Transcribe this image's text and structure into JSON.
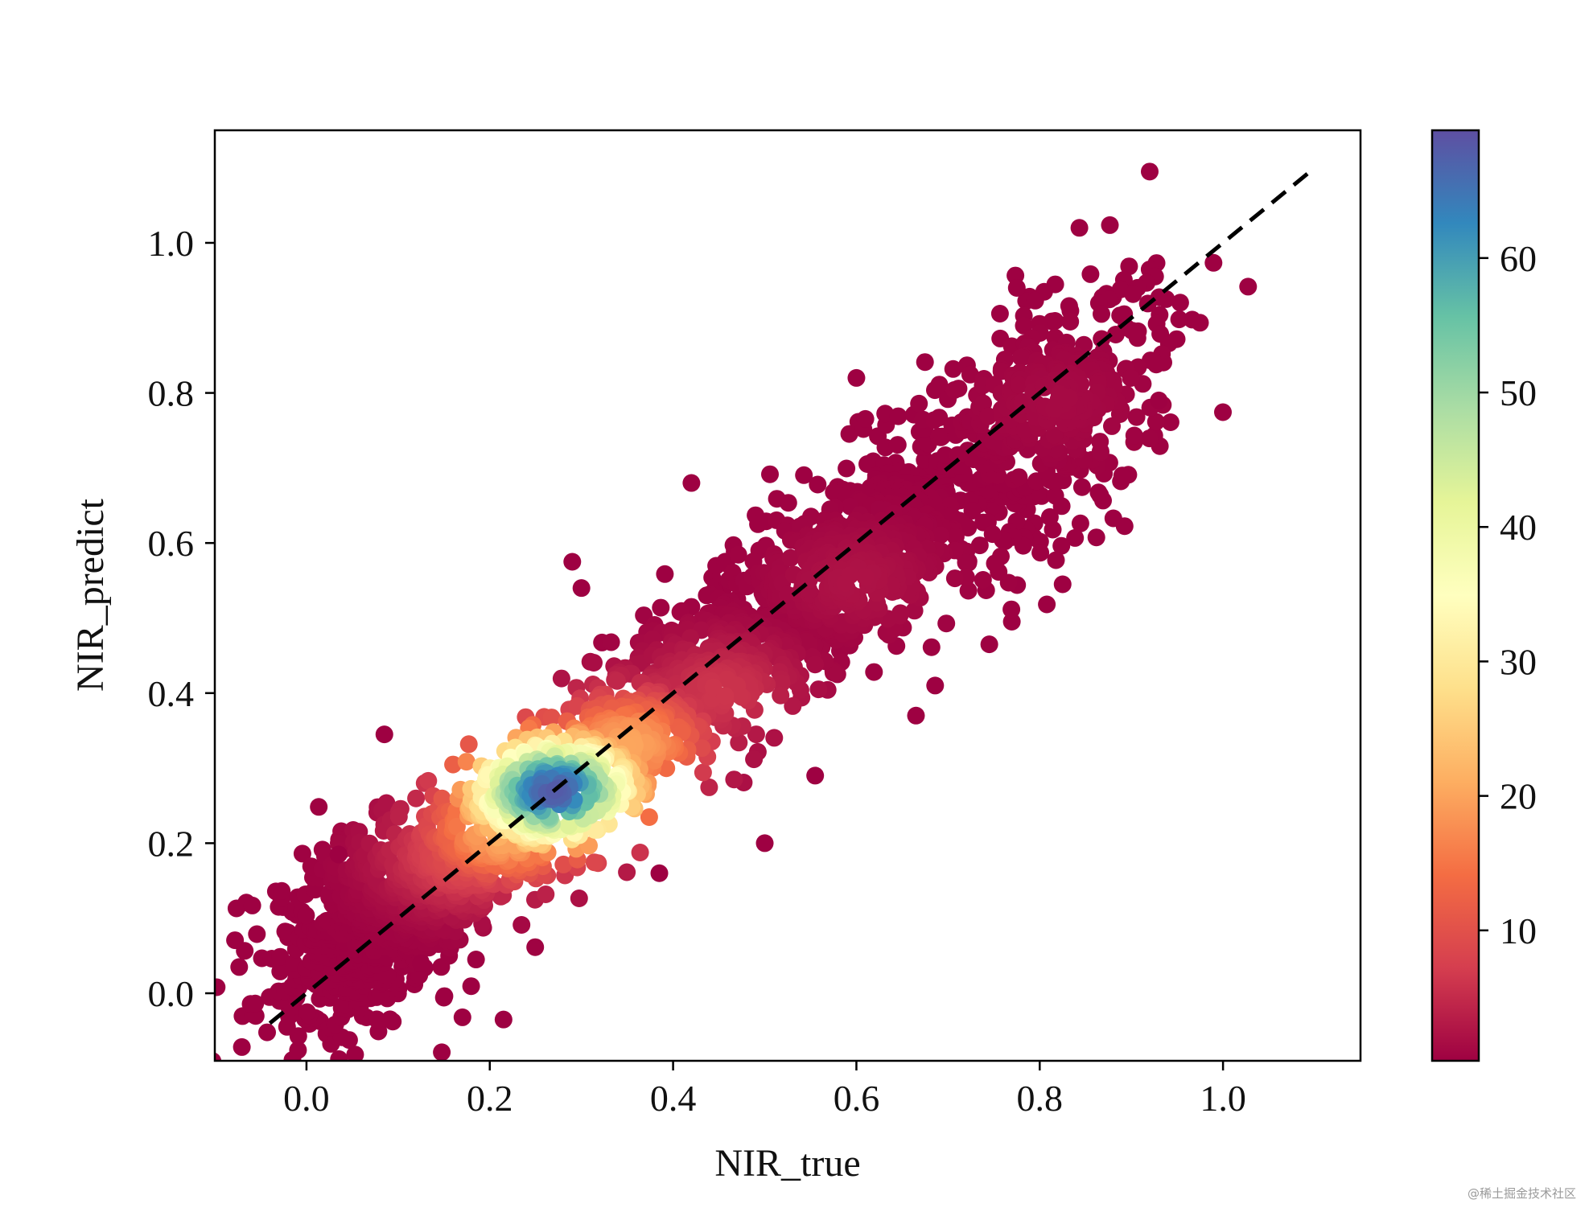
{
  "chart_data": {
    "type": "scatter",
    "title": "",
    "xlabel": "NIR_true",
    "ylabel": "NIR_predict",
    "xlim": [
      -0.1,
      1.15
    ],
    "ylim": [
      -0.09,
      1.15
    ],
    "xticks": [
      0.0,
      0.2,
      0.4,
      0.6,
      0.8,
      1.0
    ],
    "xtick_labels": [
      "0.0",
      "0.2",
      "0.4",
      "0.6",
      "0.8",
      "1.0"
    ],
    "yticks": [
      0.0,
      0.2,
      0.4,
      0.6,
      0.8,
      1.0
    ],
    "ytick_labels": [
      "0.0",
      "0.2",
      "0.4",
      "0.6",
      "0.8",
      "1.0"
    ],
    "grid": false,
    "legend": "none",
    "colormap": "Spectral",
    "colorbar": {
      "range": [
        0.3,
        69.5
      ],
      "ticks": [
        10,
        20,
        30,
        40,
        50,
        60
      ],
      "tick_labels": [
        "10",
        "20",
        "30",
        "40",
        "50",
        "60"
      ],
      "colors": [
        "#9e0142",
        "#d53e4f",
        "#f46d43",
        "#fdae61",
        "#fee08b",
        "#ffffbf",
        "#e6f598",
        "#abdda4",
        "#66c2a5",
        "#3288bd",
        "#5e4fa2"
      ]
    },
    "reference_line": {
      "style": "dashed",
      "color": "#000000",
      "x": [
        -0.04,
        1.1
      ],
      "y": [
        -0.04,
        1.1
      ]
    },
    "density_core": [
      {
        "x": 0.27,
        "y": 0.27,
        "density": 68
      },
      {
        "x": 0.22,
        "y": 0.22,
        "density": 22
      },
      {
        "x": 0.35,
        "y": 0.33,
        "density": 20
      },
      {
        "x": 0.18,
        "y": 0.19,
        "density": 10
      },
      {
        "x": 0.45,
        "y": 0.4,
        "density": 6
      },
      {
        "x": 0.6,
        "y": 0.55,
        "density": 2
      },
      {
        "x": 0.82,
        "y": 0.79,
        "density": 1
      }
    ],
    "outliers": [
      {
        "x": 0.92,
        "y": 1.095
      },
      {
        "x": 0.775,
        "y": 0.94
      },
      {
        "x": 0.215,
        "y": -0.035
      },
      {
        "x": 0.42,
        "y": 0.68
      },
      {
        "x": 0.6,
        "y": 0.82
      },
      {
        "x": 0.29,
        "y": 0.575
      },
      {
        "x": 0.3,
        "y": 0.54
      },
      {
        "x": 0.085,
        "y": 0.345
      },
      {
        "x": 0.035,
        "y": 0.185
      },
      {
        "x": 0.125,
        "y": 0.04
      },
      {
        "x": 0.185,
        "y": 0.045
      },
      {
        "x": 0.825,
        "y": 0.545
      },
      {
        "x": 0.745,
        "y": 0.465
      },
      {
        "x": 0.5,
        "y": 0.2
      },
      {
        "x": 0.385,
        "y": 0.16
      },
      {
        "x": 0.93,
        "y": 0.79
      },
      {
        "x": 0.89,
        "y": 0.69
      },
      {
        "x": 0.665,
        "y": 0.37
      },
      {
        "x": 0.555,
        "y": 0.29
      }
    ]
  }
}
